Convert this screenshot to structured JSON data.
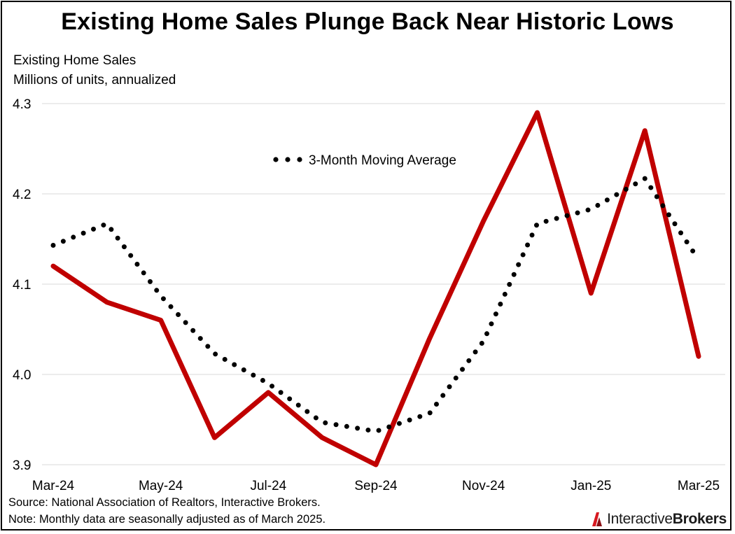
{
  "page": {
    "title": "Existing Home Sales Plunge Back Near Historic Lows",
    "footnotes": {
      "source": "Source: National Association of Realtors, Interactive Brokers.",
      "note": "Note: Monthly data are seasonally adjusted as of March 2025."
    },
    "logo": {
      "part1": "Interactive",
      "part2": "Brokers",
      "icon": "interactive-brokers-logo-icon"
    }
  },
  "chart_data": {
    "type": "line",
    "title": "Existing Home Sales Plunge Back Near Historic Lows",
    "ylabel_lines": [
      "Existing Home Sales",
      "Millions of units, annualized"
    ],
    "x": [
      "Mar-24",
      "Apr-24",
      "May-24",
      "Jun-24",
      "Jul-24",
      "Aug-24",
      "Sep-24",
      "Oct-24",
      "Nov-24",
      "Dec-24",
      "Jan-25",
      "Feb-25",
      "Mar-25"
    ],
    "xtick_labels": [
      "Mar-24",
      "May-24",
      "Jul-24",
      "Sep-24",
      "Nov-24",
      "Jan-25",
      "Mar-25"
    ],
    "ylim": [
      3.9,
      4.3
    ],
    "yticks": [
      "3.9",
      "4.0",
      "4.1",
      "4.2",
      "4.3"
    ],
    "grid": true,
    "series": [
      {
        "name": "",
        "style": "solid",
        "color": "#c00000",
        "values": [
          4.12,
          4.08,
          4.06,
          3.93,
          3.98,
          3.93,
          3.9,
          4.04,
          4.17,
          4.29,
          4.09,
          4.27,
          4.02
        ]
      },
      {
        "name": "3-Month Moving Average",
        "style": "dotted",
        "color": "#000000",
        "values": [
          4.143,
          4.167,
          4.087,
          4.023,
          3.99,
          3.947,
          3.937,
          3.957,
          4.037,
          4.167,
          4.183,
          4.217,
          4.127
        ]
      }
    ],
    "legend": {
      "placement": "top-center",
      "label": "3-Month Moving Average"
    }
  }
}
